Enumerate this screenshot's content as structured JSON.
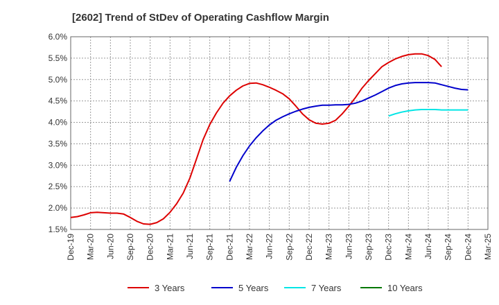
{
  "chart_data": {
    "type": "line",
    "title": "[2602]  Trend of StDev of Operating Cashflow Margin",
    "xlabel": "",
    "ylabel": "",
    "x_ticks": [
      "Dec-19",
      "Mar-20",
      "Jun-20",
      "Sep-20",
      "Dec-20",
      "Mar-21",
      "Jun-21",
      "Sep-21",
      "Dec-21",
      "Mar-22",
      "Jun-22",
      "Sep-22",
      "Dec-22",
      "Mar-23",
      "Jun-23",
      "Sep-23",
      "Dec-23",
      "Mar-24",
      "Jun-24",
      "Sep-24",
      "Dec-24",
      "Mar-25"
    ],
    "y_ticks": [
      "1.5%",
      "2.0%",
      "2.5%",
      "3.0%",
      "3.5%",
      "4.0%",
      "4.5%",
      "5.0%",
      "5.5%",
      "6.0%"
    ],
    "ylim": [
      1.5,
      6.0
    ],
    "y_unit": "%",
    "grid": true,
    "legend_position": "bottom",
    "series": [
      {
        "name": "3 Years",
        "color": "#dd0000",
        "start_index": 0,
        "values": [
          1.78,
          1.8,
          1.84,
          1.89,
          1.9,
          1.89,
          1.88,
          1.88,
          1.86,
          1.78,
          1.69,
          1.63,
          1.62,
          1.66,
          1.75,
          1.9,
          2.1,
          2.35,
          2.7,
          3.15,
          3.6,
          3.95,
          4.22,
          4.45,
          4.62,
          4.75,
          4.85,
          4.91,
          4.92,
          4.88,
          4.82,
          4.75,
          4.67,
          4.55,
          4.38,
          4.2,
          4.06,
          3.98,
          3.96,
          3.98,
          4.05,
          4.2,
          4.38,
          4.58,
          4.8,
          4.98,
          5.14,
          5.3,
          5.4,
          5.48,
          5.54,
          5.58,
          5.6,
          5.6,
          5.56,
          5.47,
          5.3
        ]
      },
      {
        "name": "5 Years",
        "color": "#0000cc",
        "start_index": 24,
        "values": [
          2.62,
          2.95,
          3.22,
          3.45,
          3.64,
          3.8,
          3.94,
          4.05,
          4.13,
          4.2,
          4.26,
          4.31,
          4.35,
          4.38,
          4.4,
          4.4,
          4.41,
          4.41,
          4.42,
          4.45,
          4.5,
          4.57,
          4.64,
          4.72,
          4.8,
          4.86,
          4.9,
          4.92,
          4.93,
          4.93,
          4.93,
          4.92,
          4.88,
          4.84,
          4.8,
          4.77,
          4.76
        ]
      },
      {
        "name": "7 Years",
        "color": "#00e5e5",
        "start_index": 48,
        "values": [
          4.15,
          4.2,
          4.24,
          4.27,
          4.29,
          4.3,
          4.3,
          4.3,
          4.29,
          4.29,
          4.29,
          4.29,
          4.29
        ]
      },
      {
        "name": "10 Years",
        "color": "#007700",
        "start_index": 0,
        "values": []
      }
    ]
  }
}
